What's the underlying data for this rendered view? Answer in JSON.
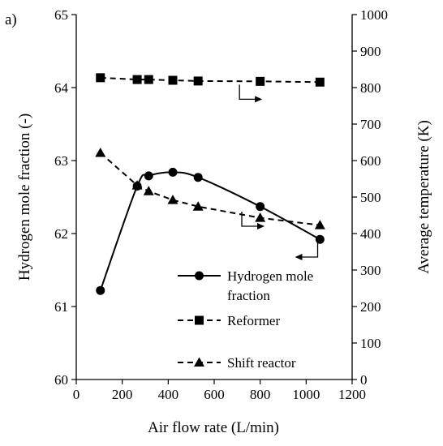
{
  "chart_data": {
    "type": "line",
    "panel_label": "a)",
    "title": "",
    "xlabel": "Air flow rate (L/min)",
    "ylabel_left": "Hydrogen mole fraction (-)",
    "ylabel_right": "Average temperature (K)",
    "xlim": [
      0,
      1200
    ],
    "ylim_left": [
      60,
      65
    ],
    "ylim_right": [
      0,
      1000
    ],
    "x_ticks": [
      0,
      200,
      400,
      600,
      800,
      1000,
      1200
    ],
    "y_ticks_left": [
      60,
      61,
      62,
      63,
      64,
      65
    ],
    "y_ticks_right": [
      0,
      100,
      200,
      300,
      400,
      500,
      600,
      700,
      800,
      900,
      1000
    ],
    "grid": false,
    "series": [
      {
        "name": "Hydrogen mole fraction",
        "legend_lines": [
          "Hydrogen mole",
          "fraction"
        ],
        "axis": "left",
        "marker": "circle",
        "line_style": "solid",
        "x": [
          105,
          265,
          315,
          420,
          530,
          800,
          1060
        ],
        "y": [
          61.22,
          62.65,
          62.79,
          62.84,
          62.77,
          62.37,
          61.92
        ]
      },
      {
        "name": "Reformer",
        "legend_lines": [
          "Reformer"
        ],
        "axis": "right",
        "marker": "square",
        "line_style": "dashed",
        "x": [
          105,
          265,
          315,
          420,
          530,
          800,
          1060
        ],
        "y": [
          827,
          822,
          822,
          820,
          818,
          817,
          815
        ]
      },
      {
        "name": "Shift reactor",
        "legend_lines": [
          "Shift reactor"
        ],
        "axis": "right",
        "marker": "triangle",
        "line_style": "dashed",
        "x": [
          105,
          265,
          315,
          420,
          530,
          800,
          1060
        ],
        "y": [
          621,
          532,
          516,
          492,
          474,
          443,
          423
        ]
      }
    ],
    "axis_arrows": [
      {
        "series": "Reformer",
        "direction": "right",
        "at": [
          710,
          808
        ]
      },
      {
        "series": "Shift reactor",
        "direction": "right",
        "at": [
          720,
          460
        ]
      },
      {
        "series": "Hydrogen mole fraction",
        "direction": "left",
        "at": [
          1050,
          61.9
        ]
      }
    ],
    "legend_placement": "lower-right"
  }
}
